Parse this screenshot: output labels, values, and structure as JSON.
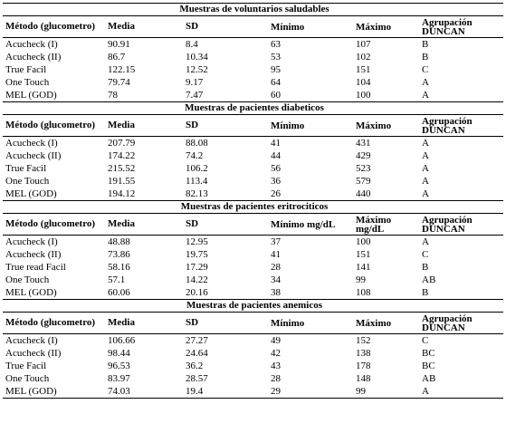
{
  "sections": [
    {
      "title": "Muestras de voluntarios saludables",
      "headers": [
        "Método (glucometro)",
        "Media",
        "SD",
        "Mínimo",
        "Máximo",
        "Agrupación DUNCAN"
      ],
      "rows": [
        [
          "Acucheck (I)",
          "90.91",
          "8.4",
          "63",
          "107",
          "B"
        ],
        [
          "Acucheck (II)",
          "86.7",
          "10.34",
          "53",
          "102",
          "B"
        ],
        [
          "True Facil",
          "122.15",
          "12.52",
          "95",
          "151",
          "C"
        ],
        [
          "One Touch",
          "79.74",
          "9.17",
          "64",
          "104",
          "A"
        ],
        [
          "MEL (GOD)",
          "78",
          "7.47",
          "60",
          "100",
          "A"
        ]
      ]
    },
    {
      "title": "Muestras de pacientes diabeticos",
      "headers": [
        "Método (glucometro)",
        "Media",
        "SD",
        "Mínimo",
        "Máximo",
        "Agrupación DUNCAN"
      ],
      "rows": [
        [
          "Acucheck (I)",
          "207.79",
          "88.08",
          "41",
          "431",
          "A"
        ],
        [
          "Acucheck (II)",
          "174.22",
          "74.2",
          "44",
          "429",
          "A"
        ],
        [
          "True Facil",
          "215.52",
          "106.2",
          "56",
          "523",
          "A"
        ],
        [
          "One Touch",
          "191.55",
          "113.4",
          "36",
          "579",
          "A"
        ],
        [
          "MEL (GOD)",
          "194.12",
          "82.13",
          "26",
          "440",
          "A"
        ]
      ]
    },
    {
      "title": "Muestras de pacientes eritrociticos",
      "headers": [
        "Método (glucometro)",
        "Media",
        "SD",
        "Mínimo mg/dL",
        "Máximo mg/dL",
        "Agrupación DUNCAN"
      ],
      "rows": [
        [
          "Acucheck (I)",
          "48.88",
          "12.95",
          "37",
          "100",
          "A"
        ],
        [
          "Acucheck (II)",
          "73.86",
          "19.75",
          "41",
          "151",
          "C"
        ],
        [
          "True read Facil",
          "58.16",
          "17.29",
          "28",
          "141",
          "B"
        ],
        [
          "One Touch",
          "57.1",
          "14.22",
          "34",
          "99",
          "AB"
        ],
        [
          "MEL (GOD)",
          "60.06",
          "20.16",
          "38",
          "108",
          "B"
        ]
      ]
    },
    {
      "title": "Muestras de pacientes anemicos",
      "headers": [
        "Método (glucometro)",
        "Media",
        "SD",
        "Mínimo",
        "Máximo",
        "Agrupación DUNCAN"
      ],
      "rows": [
        [
          "Acucheck (I)",
          "106.66",
          "27.27",
          "49",
          "152",
          "C"
        ],
        [
          "Acucheck (II)",
          "98.44",
          "24.64",
          "42",
          "138",
          "BC"
        ],
        [
          "True Facil",
          "96.53",
          "36.2",
          "43",
          "178",
          "BC"
        ],
        [
          "One Touch",
          "83.97",
          "28.57",
          "28",
          "148",
          "AB"
        ],
        [
          "MEL (GOD)",
          "74.03",
          "19.4",
          "29",
          "99",
          "A"
        ]
      ]
    }
  ]
}
